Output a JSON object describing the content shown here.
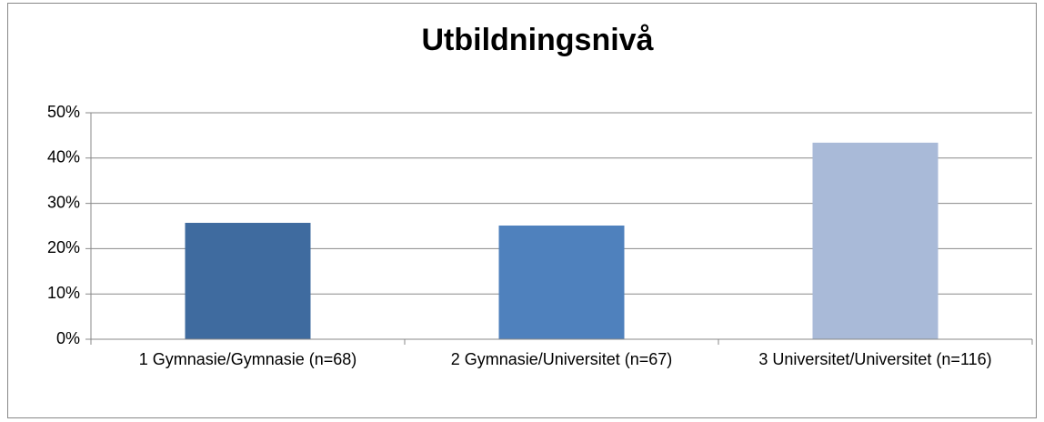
{
  "chart_data": {
    "type": "bar",
    "title": "Utbildningsnivå",
    "categories": [
      "1 Gymnasie/Gymnasie (n=68)",
      "2 Gymnasie/Universitet (n=67)",
      "3 Universitet/Universitet (n=116)"
    ],
    "values": [
      25.7,
      25.1,
      43.4
    ],
    "colors": [
      "#3f6b9f",
      "#4f81bd",
      "#a9bad8"
    ],
    "ylim": [
      0,
      50
    ],
    "yticks": [
      {
        "value": 0,
        "label": "0%"
      },
      {
        "value": 10,
        "label": "10%"
      },
      {
        "value": 20,
        "label": "20%"
      },
      {
        "value": 30,
        "label": "30%"
      },
      {
        "value": 40,
        "label": "40%"
      },
      {
        "value": 50,
        "label": "50%"
      }
    ],
    "grid": true
  }
}
